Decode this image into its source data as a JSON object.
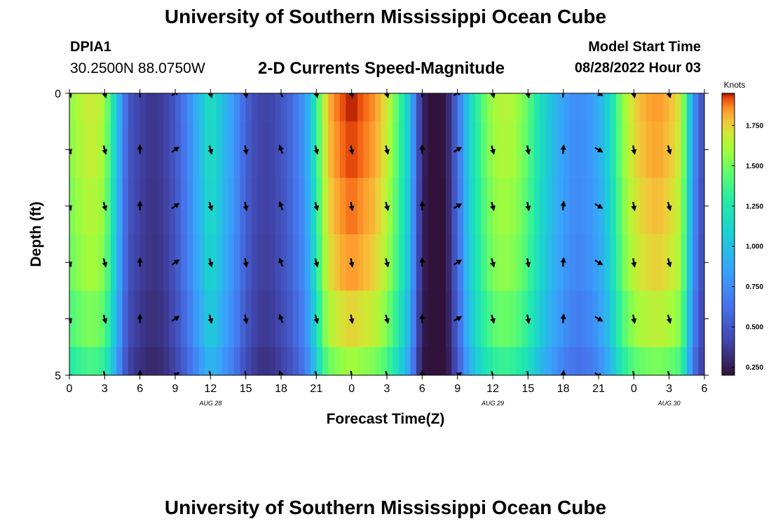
{
  "header": {
    "title": "University of Southern Mississippi Ocean Cube",
    "station_id": "DPIA1",
    "coordinates": "30.2500N  88.0750W",
    "subtitle": "2-D Currents Speed-Magnitude",
    "model_start_label": "Model Start Time",
    "model_start_value": "08/28/2022 Hour 03"
  },
  "footer": {
    "title": "University of Southern Mississippi Ocean Cube"
  },
  "chart_data": {
    "type": "heatmap",
    "title": "2-D Currents Speed-Magnitude",
    "xlabel": "Forecast Time(Z)",
    "ylabel": "Depth (ft)",
    "ylim": [
      0,
      5
    ],
    "y_ticks": [
      "0",
      "5"
    ],
    "x_tick_labels": [
      "0",
      "3",
      "6",
      "9",
      "12",
      "15",
      "18",
      "21",
      "0",
      "3",
      "6",
      "9",
      "12",
      "15",
      "18",
      "21",
      "0",
      "3",
      "6"
    ],
    "date_labels": [
      {
        "label": "AUG 28",
        "hour": 12
      },
      {
        "label": "AUG 29",
        "hour": 36
      },
      {
        "label": "AUG 30",
        "hour": 51
      }
    ],
    "x_range_hours": [
      0,
      54
    ],
    "colorbar": {
      "unit": "Knots",
      "min": 0.2,
      "max": 1.95,
      "ticks": [
        "0.250",
        "0.500",
        "0.750",
        "1.000",
        "1.250",
        "1.500",
        "1.750"
      ],
      "tick_values": [
        0.25,
        0.5,
        0.75,
        1.0,
        1.25,
        1.5,
        1.75
      ]
    },
    "depth_rows": [
      0,
      1,
      2,
      3,
      4,
      5
    ],
    "depth_factor": [
      1.0,
      0.99,
      0.97,
      0.95,
      0.9,
      0.82
    ],
    "speed_profile_hours": [
      0,
      1,
      2,
      3,
      3.5,
      4,
      4.5,
      5,
      6,
      7,
      8,
      9,
      10,
      11,
      12,
      13,
      14,
      15,
      16,
      17,
      18,
      19,
      20,
      20.5,
      21,
      21.5,
      22,
      23,
      24,
      25,
      26,
      27,
      28,
      29,
      29.5,
      30,
      30.5,
      31,
      32,
      32.5,
      33,
      33.5,
      34,
      35,
      36,
      37,
      38,
      39,
      40,
      41,
      42,
      43,
      44,
      45,
      46,
      47,
      48,
      49,
      50,
      51,
      52,
      52.5,
      53,
      54
    ],
    "speed_profile_values": [
      1.55,
      1.65,
      1.7,
      1.6,
      1.35,
      1.05,
      0.75,
      0.5,
      0.4,
      0.35,
      0.38,
      0.5,
      0.7,
      0.95,
      1.2,
      1.0,
      0.8,
      0.55,
      0.42,
      0.4,
      0.48,
      0.6,
      0.8,
      1.0,
      1.3,
      1.6,
      1.8,
      1.9,
      1.95,
      1.9,
      1.85,
      1.7,
      1.4,
      1.0,
      0.55,
      0.3,
      0.2,
      0.18,
      0.22,
      0.4,
      0.6,
      0.85,
      1.1,
      1.4,
      1.6,
      1.65,
      1.6,
      1.45,
      1.2,
      1.0,
      0.85,
      0.75,
      0.78,
      0.9,
      1.15,
      1.55,
      1.75,
      1.82,
      1.85,
      1.8,
      1.7,
      1.3,
      0.8,
      0.4
    ],
    "arrow_hours": [
      0,
      3,
      6,
      9,
      12,
      15,
      18,
      21,
      24,
      27,
      30,
      33,
      36,
      39,
      42,
      45,
      48,
      51
    ],
    "arrow_depths": [
      0,
      1,
      2,
      3,
      4,
      5
    ],
    "arrow_direction_deg": [
      160,
      165,
      0,
      55,
      165,
      170,
      340,
      165,
      170,
      165,
      0,
      60,
      165,
      170,
      5,
      120,
      170,
      165
    ]
  }
}
